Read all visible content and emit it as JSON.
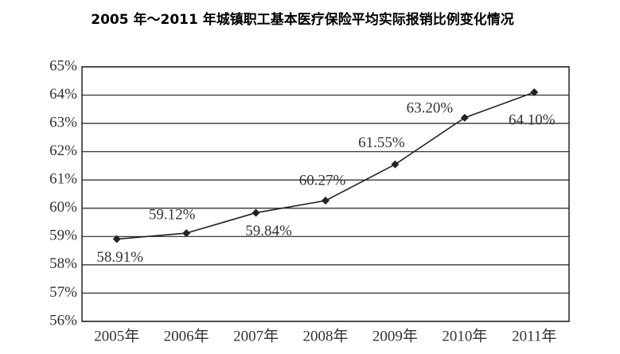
{
  "chart_data": {
    "type": "line",
    "title": "2005 年～2011 年城镇职工基本医疗保险平均实际报销比例变化情况",
    "categories": [
      "2005年",
      "2006年",
      "2007年",
      "2008年",
      "2009年",
      "2010年",
      "2011年"
    ],
    "series": [
      {
        "color": "#222222",
        "values": [
          58.91,
          59.12,
          59.84,
          60.27,
          61.55,
          63.2,
          64.1
        ],
        "value_labels": [
          "58.91%",
          "59.12%",
          "59.84%",
          "60.27%",
          "61.55%",
          "63.20%",
          "64.10%"
        ]
      }
    ],
    "ylim": [
      56,
      65
    ],
    "yticks": [
      {
        "value": 56,
        "label": "56%"
      },
      {
        "value": 57,
        "label": "57%"
      },
      {
        "value": 58,
        "label": "58%"
      },
      {
        "value": 59,
        "label": "59%"
      },
      {
        "value": 60,
        "label": "60%"
      },
      {
        "value": 61,
        "label": "61%"
      },
      {
        "value": 62,
        "label": "62%"
      },
      {
        "value": 63,
        "label": "63%"
      },
      {
        "value": 64,
        "label": "64%"
      },
      {
        "value": 65,
        "label": "65%"
      }
    ],
    "grid": true
  }
}
